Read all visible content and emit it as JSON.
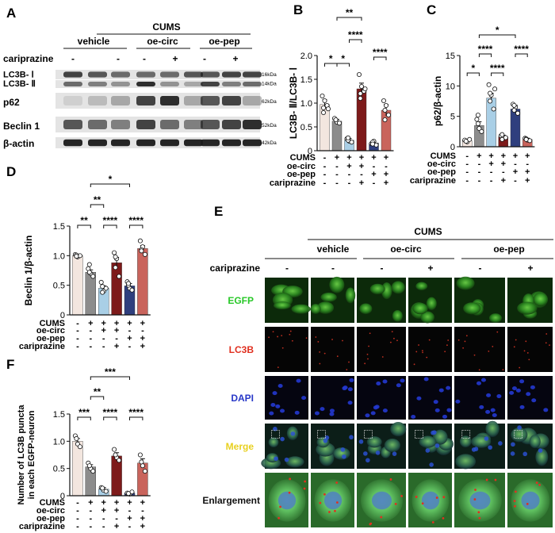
{
  "panel_labels": [
    "A",
    "B",
    "C",
    "D",
    "E",
    "F"
  ],
  "panelA": {
    "group_header": "CUMS",
    "groups": [
      "vehicle",
      "oe-circ",
      "oe-pep"
    ],
    "treatment_label": "cariprazine",
    "treatment_signs": [
      "-",
      "-",
      "-",
      "+",
      "-",
      "+"
    ],
    "bands": [
      {
        "name": "LC3B- Ⅰ",
        "kda": "16kDa"
      },
      {
        "name": "LC3B- Ⅱ",
        "kda": "14kDa"
      },
      {
        "name": "p62",
        "kda": "62kDa"
      },
      {
        "name": "Beclin 1",
        "kda": "52kDa"
      },
      {
        "name": "β-actin",
        "kda": "42kDa"
      }
    ]
  },
  "bar_colors": [
    "#f3e6df",
    "#8c8c8c",
    "#a9cfe6",
    "#7d1a1a",
    "#2f3f7e",
    "#c9645c"
  ],
  "row_labels": [
    "CUMS",
    "oe-circ",
    "oe-pep",
    "cariprazine"
  ],
  "row_signs": [
    [
      "-",
      "+",
      "+",
      "+",
      "+",
      "+"
    ],
    [
      "-",
      "-",
      "+",
      "+",
      "-",
      "-"
    ],
    [
      "-",
      "-",
      "-",
      "-",
      "+",
      "+"
    ],
    [
      "-",
      "-",
      "-",
      "+",
      "-",
      "+"
    ]
  ],
  "chart_data": [
    {
      "panel": "B",
      "type": "bar",
      "ylabel": "LC3B- Ⅱ/LC3B- Ⅰ",
      "ylim": [
        0,
        2.0
      ],
      "yticks": [
        "0",
        "0.5",
        "1.0",
        "1.5",
        "2.0"
      ],
      "values": [
        0.97,
        0.62,
        0.22,
        1.3,
        0.16,
        0.85
      ],
      "errors": [
        0.1,
        0.04,
        0.04,
        0.12,
        0.03,
        0.12
      ],
      "points": [
        [
          1.15,
          1.05,
          0.95,
          0.8,
          0.9,
          0.88
        ],
        [
          0.68,
          0.6,
          0.58,
          0.65
        ],
        [
          0.25,
          0.2,
          0.18,
          0.22,
          0.27
        ],
        [
          1.6,
          1.35,
          1.25,
          1.1,
          1.2,
          1.3
        ],
        [
          0.15,
          0.2,
          0.12,
          0.18,
          0.14
        ],
        [
          1.05,
          0.95,
          0.75,
          0.65,
          0.85
        ]
      ],
      "significance": [
        "*",
        "*",
        "****",
        "**",
        "****"
      ]
    },
    {
      "panel": "C",
      "type": "bar",
      "ylabel": "p62/β-actin",
      "ylim": [
        0,
        15
      ],
      "yticks": [
        "0",
        "5",
        "10",
        "15"
      ],
      "values": [
        1.0,
        3.5,
        8.0,
        1.6,
        6.2,
        1.2
      ],
      "errors": [
        0.2,
        0.6,
        0.8,
        0.3,
        0.6,
        0.2
      ],
      "points": [
        [
          1.1,
          0.8,
          1.2,
          0.9
        ],
        [
          4.5,
          3.0,
          2.5,
          3.8,
          5.2
        ],
        [
          10.2,
          8.5,
          6.2,
          7.5,
          8.8,
          9.5
        ],
        [
          1.8,
          1.4,
          1.5,
          2.0,
          1.2
        ],
        [
          7.0,
          6.5,
          5.5,
          6.0,
          6.8
        ],
        [
          1.4,
          1.1,
          1.0,
          1.3,
          1.2
        ]
      ],
      "significance": [
        "*",
        "****",
        "****",
        "*",
        "****"
      ]
    },
    {
      "panel": "D",
      "type": "bar",
      "ylabel": "Beclin 1/β-actin",
      "ylim": [
        0,
        1.5
      ],
      "yticks": [
        "0",
        "0.5",
        "1.0",
        "1.5"
      ],
      "values": [
        1.0,
        0.72,
        0.45,
        0.88,
        0.49,
        1.12
      ],
      "errors": [
        0.02,
        0.04,
        0.04,
        0.09,
        0.04,
        0.05
      ],
      "points": [
        [
          1.02,
          0.98,
          1.0,
          1.01,
          0.99
        ],
        [
          0.78,
          0.7,
          0.65,
          0.85,
          0.72
        ],
        [
          0.55,
          0.4,
          0.45,
          0.38,
          0.48
        ],
        [
          1.05,
          0.95,
          0.65,
          0.8,
          0.98
        ],
        [
          0.56,
          0.45,
          0.42,
          0.5,
          0.53
        ],
        [
          1.25,
          1.15,
          1.02,
          1.1,
          1.08
        ]
      ],
      "significance": [
        "**",
        "**",
        "****",
        "*",
        "****"
      ]
    },
    {
      "panel": "F",
      "type": "bar",
      "ylabel": "Number of LC3B puncta in each EGFP-neuron",
      "ylim": [
        0,
        1.5
      ],
      "yticks": [
        "0",
        "0.5",
        "1.0",
        "1.5"
      ],
      "values": [
        1.0,
        0.53,
        0.12,
        0.73,
        0.05,
        0.6
      ],
      "errors": [
        0.05,
        0.04,
        0.03,
        0.06,
        0.02,
        0.08
      ],
      "points": [
        [
          1.1,
          0.95,
          0.9,
          1.05
        ],
        [
          0.6,
          0.5,
          0.45,
          0.55
        ],
        [
          0.15,
          0.1,
          0.08,
          0.14
        ],
        [
          0.85,
          0.7,
          0.65,
          0.75
        ],
        [
          0.05,
          0.03,
          0.07,
          0.04
        ],
        [
          0.75,
          0.55,
          0.45,
          0.62
        ]
      ],
      "significance": [
        "***",
        "**",
        "****",
        "***",
        "****"
      ]
    }
  ],
  "panelE": {
    "group_header": "CUMS",
    "groups": [
      "vehicle",
      "oe-circ",
      "oe-pep"
    ],
    "treatment_label": "cariprazine",
    "treatment_signs": [
      "-",
      "-",
      "-",
      "+",
      "-",
      "+"
    ],
    "rows": [
      {
        "label": "EGFP",
        "color": "#28c828"
      },
      {
        "label": "LC3B",
        "color": "#e03020"
      },
      {
        "label": "DAPI",
        "color": "#2838c8"
      },
      {
        "label": "Merge",
        "color": "#e8d020"
      },
      {
        "label": "Enlargement",
        "color": "#111111"
      }
    ]
  }
}
